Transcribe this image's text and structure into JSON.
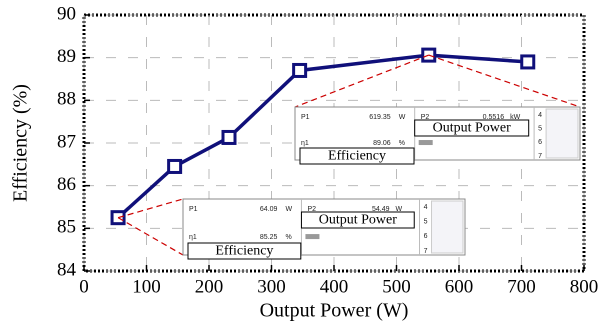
{
  "chart_data": {
    "type": "line",
    "x_label": "Output Power (W)",
    "y_label": "Efficiency (%)",
    "xlim": [
      0,
      800
    ],
    "xticks": [
      0,
      100,
      200,
      300,
      400,
      500,
      600,
      700,
      800
    ],
    "ylim": [
      84,
      90
    ],
    "yticks": [
      84,
      85,
      86,
      87,
      88,
      89,
      90
    ],
    "grid": true,
    "series": [
      {
        "color": "#10107a",
        "x": [
          54.49,
          145,
          232,
          345,
          551.6,
          710
        ],
        "values": [
          85.25,
          86.45,
          87.13,
          88.7,
          89.06,
          88.9
        ]
      }
    ]
  },
  "insets": [
    {
      "p1_label": "P1",
      "p1_value": "619.35",
      "p1_unit": "W",
      "p2_label": "P2",
      "p2_value": "0.5516",
      "p2_unit": "kW",
      "eta_label": "η1",
      "eta_value": "89.06",
      "eta_unit": "%",
      "rows": [
        "4",
        "5",
        "6",
        "7"
      ],
      "power_caption": "Output Power",
      "efficiency_caption": "Efficiency"
    },
    {
      "p1_label": "P1",
      "p1_value": "64.09",
      "p1_unit": "W",
      "p2_label": "P2",
      "p2_value": "54.49",
      "p2_unit": "W",
      "eta_label": "η1",
      "eta_value": "85.25",
      "eta_unit": "%",
      "rows": [
        "4",
        "5",
        "6",
        "7"
      ],
      "power_caption": "Output Power",
      "efficiency_caption": "Efficiency"
    }
  ]
}
